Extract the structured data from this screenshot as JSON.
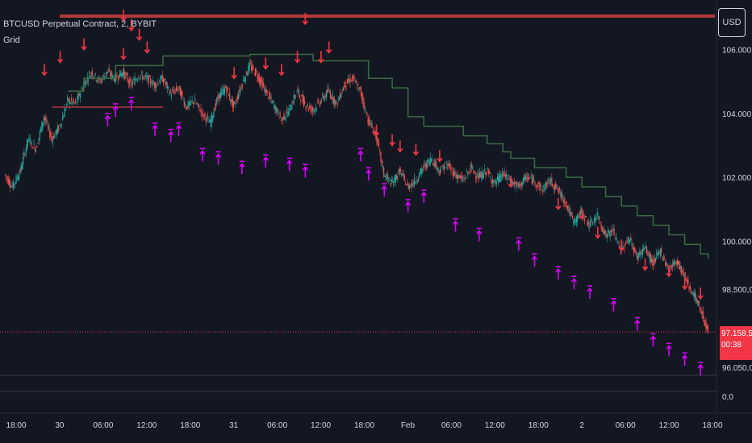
{
  "header": {
    "symbol_line": "BTCUSD Perpetual Contract, 2, BYBIT",
    "indicator": "Grid"
  },
  "currency_button": "USD",
  "price_badge": {
    "price": "97.158,5",
    "countdown": "00:38"
  },
  "colors": {
    "background": "#131722",
    "candle_up": "#26a69a",
    "candle_down": "#ef5350",
    "resistance_line": "#b2393a",
    "trailing_line": "#3a6b3f",
    "sell_arrow": "#f23645",
    "buy_arrow": "#d500f9",
    "current_price_line": "#f23645"
  },
  "icons": {
    "sell_signal": "arrow-down-red",
    "buy_signal": "arrow-up-magenta"
  },
  "chart_data": {
    "type": "candlestick",
    "title": "BTCUSD Perpetual Contract, 2, BYBIT",
    "ylim": [
      95900,
      107200
    ],
    "y_ticks": [
      106000,
      104000,
      102000,
      100000,
      98500,
      96050
    ],
    "y_tick_labels": [
      "106.000,0",
      "104.000,0",
      "102.000,0",
      "100.000,0",
      "98.500,0",
      "96.050,0"
    ],
    "sub_pane_tick": "0,0",
    "x_tick_labels": [
      "18:00",
      "30",
      "06:00",
      "12:00",
      "18:00",
      "31",
      "06:00",
      "12:00",
      "18:00",
      "Feb",
      "06:00",
      "12:00",
      "18:00",
      "2",
      "06:00",
      "12:00",
      "18:00"
    ],
    "x_tick_index": [
      0,
      3,
      6,
      9,
      12,
      15,
      18,
      21,
      24,
      27,
      30,
      33,
      36,
      39,
      42,
      45,
      48
    ],
    "x_tick_count": 49,
    "price_path": [
      [
        0,
        102100
      ],
      [
        1,
        101700
      ],
      [
        2,
        102200
      ],
      [
        3,
        103200
      ],
      [
        4,
        102900
      ],
      [
        5,
        103900
      ],
      [
        6,
        103200
      ],
      [
        7,
        103600
      ],
      [
        8,
        104400
      ],
      [
        9,
        104300
      ],
      [
        10,
        104900
      ],
      [
        11,
        105300
      ],
      [
        12,
        105000
      ],
      [
        13,
        105300
      ],
      [
        14,
        105100
      ],
      [
        15,
        105300
      ],
      [
        16,
        104900
      ],
      [
        17,
        105200
      ],
      [
        18,
        105100
      ],
      [
        19,
        104900
      ],
      [
        20,
        105100
      ],
      [
        21,
        104600
      ],
      [
        22,
        104800
      ],
      [
        23,
        104200
      ],
      [
        24,
        104400
      ],
      [
        25,
        104000
      ],
      [
        26,
        103700
      ],
      [
        27,
        104500
      ],
      [
        28,
        104800
      ],
      [
        29,
        104200
      ],
      [
        30,
        104900
      ],
      [
        31,
        105500
      ],
      [
        32,
        105200
      ],
      [
        33,
        104700
      ],
      [
        34,
        104300
      ],
      [
        35,
        103800
      ],
      [
        36,
        104100
      ],
      [
        37,
        104700
      ],
      [
        38,
        104300
      ],
      [
        39,
        104100
      ],
      [
        40,
        104400
      ],
      [
        41,
        104700
      ],
      [
        42,
        104300
      ],
      [
        43,
        104900
      ],
      [
        44,
        105100
      ],
      [
        45,
        104700
      ],
      [
        46,
        103800
      ],
      [
        47,
        103300
      ],
      [
        48,
        102100
      ],
      [
        49,
        101800
      ],
      [
        50,
        102200
      ],
      [
        51,
        101700
      ],
      [
        52,
        101900
      ],
      [
        53,
        102300
      ],
      [
        54,
        102600
      ],
      [
        55,
        102200
      ],
      [
        56,
        102400
      ],
      [
        57,
        102100
      ],
      [
        58,
        101900
      ],
      [
        59,
        102300
      ],
      [
        60,
        102000
      ],
      [
        61,
        102200
      ],
      [
        62,
        101800
      ],
      [
        63,
        102100
      ],
      [
        64,
        101900
      ],
      [
        65,
        101700
      ],
      [
        66,
        102000
      ],
      [
        67,
        101900
      ],
      [
        68,
        101600
      ],
      [
        69,
        101900
      ],
      [
        70,
        101600
      ],
      [
        71,
        101200
      ],
      [
        72,
        100600
      ],
      [
        73,
        100900
      ],
      [
        74,
        100500
      ],
      [
        75,
        100800
      ],
      [
        76,
        100200
      ],
      [
        77,
        100300
      ],
      [
        78,
        99700
      ],
      [
        79,
        100100
      ],
      [
        80,
        99500
      ],
      [
        81,
        99800
      ],
      [
        82,
        99300
      ],
      [
        83,
        99700
      ],
      [
        84,
        99100
      ],
      [
        85,
        99400
      ],
      [
        86,
        98900
      ],
      [
        87,
        98400
      ],
      [
        88,
        97900
      ],
      [
        89,
        97158
      ]
    ],
    "path_x_max": 89,
    "resistance_level": 107050,
    "support_segment": {
      "x_from": 6,
      "x_to": 20,
      "y": 104200
    },
    "trailing_stop": [
      [
        8,
        104700
      ],
      [
        10,
        105100
      ],
      [
        14,
        105500
      ],
      [
        20,
        105800
      ],
      [
        31,
        105850
      ],
      [
        39,
        105650
      ],
      [
        46,
        105100
      ],
      [
        49,
        104800
      ],
      [
        51,
        103900
      ],
      [
        53,
        103600
      ],
      [
        58,
        103300
      ],
      [
        61,
        103050
      ],
      [
        63,
        102800
      ],
      [
        64,
        102600
      ],
      [
        67,
        102300
      ],
      [
        71,
        102000
      ],
      [
        73,
        101700
      ],
      [
        76,
        101400
      ],
      [
        78,
        101100
      ],
      [
        80,
        100800
      ],
      [
        82,
        100500
      ],
      [
        84,
        100200
      ],
      [
        86,
        99900
      ],
      [
        88,
        99600
      ],
      [
        89,
        99450
      ]
    ],
    "sell_signals": [
      [
        5,
        105200
      ],
      [
        7,
        105600
      ],
      [
        10,
        106000
      ],
      [
        15,
        106900
      ],
      [
        16,
        106600
      ],
      [
        17,
        106300
      ],
      [
        15,
        105700
      ],
      [
        18,
        105900
      ],
      [
        29,
        105100
      ],
      [
        33,
        105400
      ],
      [
        35,
        105200
      ],
      [
        37,
        105600
      ],
      [
        38,
        106800
      ],
      [
        40,
        105600
      ],
      [
        41,
        105900
      ],
      [
        47,
        103300
      ],
      [
        49,
        103000
      ],
      [
        50,
        102800
      ],
      [
        52,
        102700
      ],
      [
        55,
        102500
      ],
      [
        64,
        101700
      ],
      [
        70,
        101000
      ],
      [
        73,
        100700
      ],
      [
        75,
        100100
      ],
      [
        78,
        99700
      ],
      [
        81,
        99100
      ],
      [
        84,
        98900
      ],
      [
        86,
        98500
      ],
      [
        88,
        98200
      ]
    ],
    "buy_signals": [
      [
        13,
        104000
      ],
      [
        14,
        104300
      ],
      [
        16,
        104500
      ],
      [
        19,
        103700
      ],
      [
        21,
        103500
      ],
      [
        22,
        103700
      ],
      [
        25,
        102900
      ],
      [
        27,
        102800
      ],
      [
        30,
        102500
      ],
      [
        33,
        102700
      ],
      [
        36,
        102600
      ],
      [
        38,
        102400
      ],
      [
        45,
        102900
      ],
      [
        46,
        102300
      ],
      [
        48,
        101800
      ],
      [
        51,
        101300
      ],
      [
        53,
        101600
      ],
      [
        57,
        100700
      ],
      [
        60,
        100400
      ],
      [
        65,
        100100
      ],
      [
        67,
        99600
      ],
      [
        70,
        99200
      ],
      [
        72,
        98900
      ],
      [
        74,
        98600
      ],
      [
        77,
        98200
      ],
      [
        80,
        97600
      ],
      [
        82,
        97100
      ],
      [
        84,
        96800
      ],
      [
        86,
        96500
      ],
      [
        88,
        96200
      ]
    ]
  }
}
